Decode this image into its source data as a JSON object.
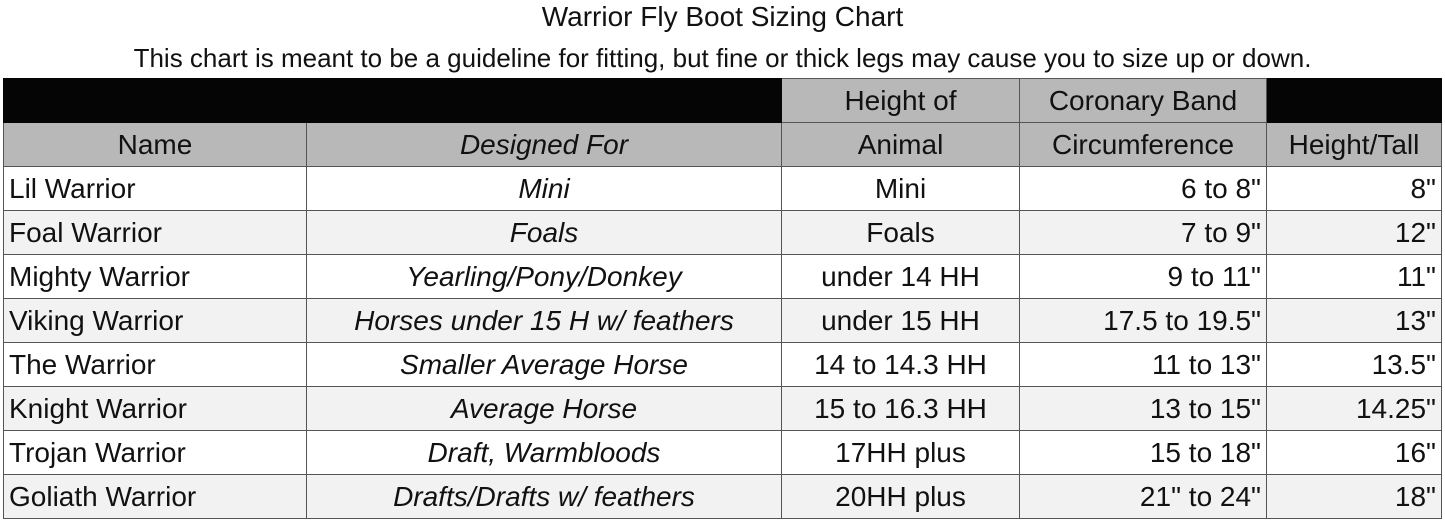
{
  "title": "Warrior Fly Boot Sizing Chart",
  "subtitle": "This chart is meant to be a guideline for fitting, but fine or thick legs may cause you to size up or down.",
  "headers": {
    "name": "Name",
    "designed_for": "Designed For",
    "height_line1": "Height of",
    "height_line2": "Animal",
    "coronary_line1": "Coronary Band",
    "coronary_line2": "Circumference",
    "tall": "Height/Tall"
  },
  "rows": [
    [
      "Lil Warrior",
      "Mini",
      "Mini",
      "6 to 8\"",
      "8\""
    ],
    [
      "Foal Warrior",
      "Foals",
      "Foals",
      "7 to 9\"",
      "12\""
    ],
    [
      "Mighty Warrior",
      "Yearling/Pony/Donkey",
      "under 14 HH",
      "9 to 11\"",
      "11\""
    ],
    [
      "Viking Warrior",
      "Horses under 15 H w/ feathers",
      "under 15 HH",
      "17.5 to  19.5\"",
      "13\""
    ],
    [
      "The Warrior",
      "Smaller Average Horse",
      "14 to 14.3 HH",
      "11 to 13\"",
      "13.5\""
    ],
    [
      "Knight Warrior",
      "Average Horse",
      "15 to 16.3 HH",
      "13 to 15\"",
      "14.25\""
    ],
    [
      "Trojan Warrior",
      "Draft, Warmbloods",
      "17HH plus",
      "15 to 18\"",
      "16\""
    ],
    [
      "Goliath Warrior",
      "Drafts/Drafts w/ feathers",
      "20HH plus",
      "21\" to 24\"",
      "18\""
    ]
  ],
  "colors": {
    "header_black": "#050505",
    "header_grey": "#b8b8b8",
    "row_alt": "#f2f2f2"
  }
}
